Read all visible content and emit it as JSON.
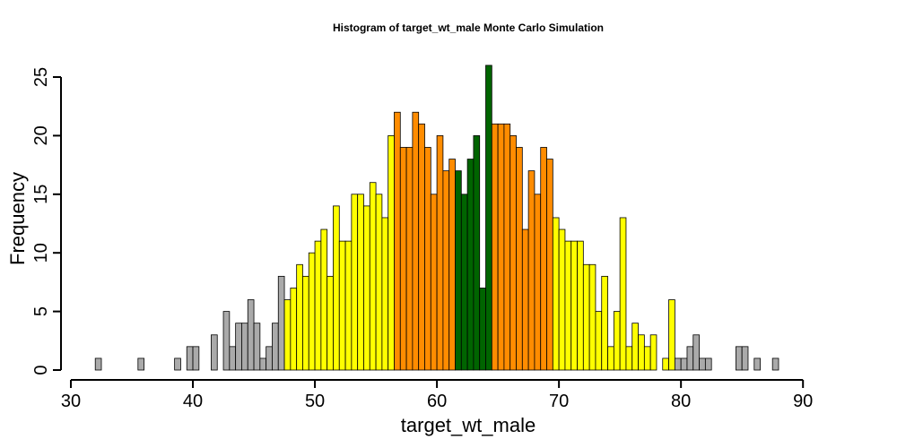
{
  "chart_data": {
    "type": "bar",
    "title": "Histogram of  target_wt_male  Monte Carlo Simulation",
    "xlabel": "target_wt_male",
    "ylabel": "Frequency",
    "xlim": [
      30,
      93
    ],
    "ylim": [
      0,
      26
    ],
    "xticks": [
      30,
      40,
      50,
      60,
      70,
      80,
      90
    ],
    "yticks": [
      0,
      5,
      10,
      15,
      20,
      25
    ],
    "bin_start": 32,
    "bin_width": 0.5,
    "values": [
      1,
      0,
      0,
      0,
      0,
      0,
      0,
      1,
      0,
      0,
      0,
      0,
      0,
      1,
      0,
      2,
      2,
      0,
      0,
      3,
      0,
      5,
      2,
      4,
      4,
      6,
      4,
      1,
      2,
      4,
      8,
      6,
      7,
      9,
      8,
      10,
      11,
      12,
      8,
      14,
      11,
      11,
      15,
      15,
      14,
      16,
      15,
      13,
      20,
      22,
      19,
      19,
      22,
      21,
      19,
      15,
      20,
      17,
      18,
      17,
      15,
      18,
      20,
      7,
      26,
      21,
      21,
      21,
      20,
      19,
      12,
      17,
      15,
      19,
      18,
      13,
      12,
      11,
      11,
      11,
      9,
      9,
      5,
      8,
      2,
      5,
      13,
      2,
      4,
      3,
      2,
      3,
      0,
      1,
      6,
      1,
      1,
      2,
      3,
      1,
      1,
      0,
      0,
      0,
      0,
      2,
      2,
      0,
      1,
      0,
      0,
      1
    ],
    "colors": {
      "gray": "#aaaaaa",
      "yellow": "#ffff00",
      "orange": "#ff8c00",
      "green": "#006400",
      "axis": "#000000"
    },
    "color_bands": [
      {
        "from": 32,
        "to": 47.5,
        "color": "gray"
      },
      {
        "from": 47.5,
        "to": 56.5,
        "color": "yellow"
      },
      {
        "from": 56.5,
        "to": 61.5,
        "color": "orange"
      },
      {
        "from": 61.5,
        "to": 64.5,
        "color": "green"
      },
      {
        "from": 64.5,
        "to": 69.5,
        "color": "orange"
      },
      {
        "from": 69.5,
        "to": 79.5,
        "color": "yellow"
      },
      {
        "from": 79.5,
        "to": 93,
        "color": "gray"
      }
    ]
  }
}
